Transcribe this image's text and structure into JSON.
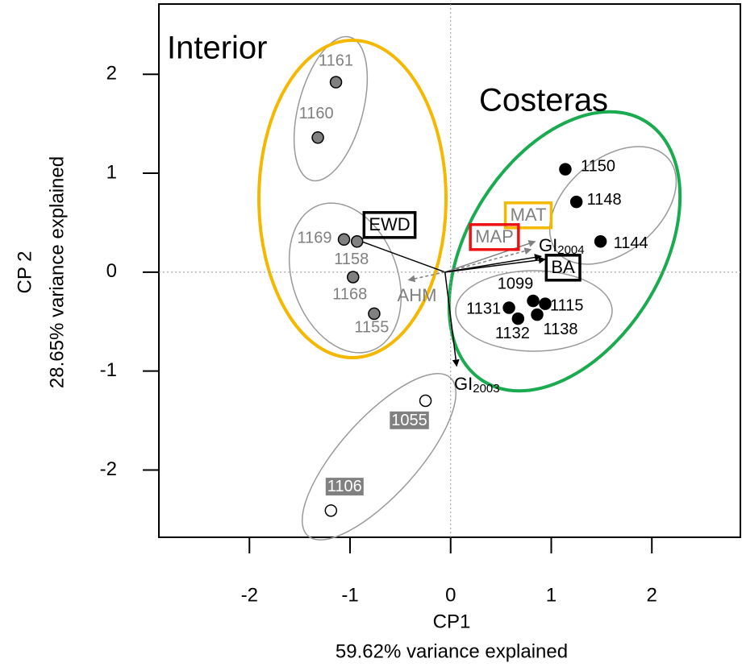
{
  "chart_data": {
    "type": "scatter",
    "x_label": "CP1",
    "x_sublabel": "59.62% variance explained",
    "y_label": "CP 2",
    "y_sublabel": "28.65% variance explained",
    "xlim": [
      -2.9,
      2.88
    ],
    "ylim": [
      -2.68,
      2.71
    ],
    "xticks": [
      -2,
      -1,
      0,
      1,
      2
    ],
    "yticks": [
      -2,
      -1,
      0,
      1,
      2
    ],
    "zero_lines": true,
    "annotations": [
      {
        "text": "Interior",
        "color": "#f5b800"
      },
      {
        "text": "Costeras",
        "color": "#1aaa4f"
      }
    ],
    "series": [
      {
        "color": "#808080",
        "label_color": "#808080",
        "labels": [
          "1161",
          "1160",
          "1169",
          "1158",
          "1168",
          "1155"
        ],
        "x": [
          -1.14,
          -1.32,
          -1.06,
          -0.93,
          -0.97,
          -0.76
        ],
        "values": [
          1.92,
          1.36,
          0.33,
          0.31,
          -0.05,
          -0.42
        ]
      },
      {
        "color": "#000000",
        "label_color": "#000000",
        "labels": [
          "1150",
          "1148",
          "1144",
          "1099",
          "1115",
          "1131",
          "1138",
          "1132"
        ],
        "x": [
          1.14,
          1.25,
          1.49,
          0.82,
          0.94,
          0.58,
          0.86,
          0.67
        ],
        "values": [
          1.04,
          0.71,
          0.31,
          -0.29,
          -0.32,
          -0.36,
          -0.43,
          -0.47
        ]
      },
      {
        "color": "#ffffff",
        "label_color": "#ffffff",
        "label_background": "#808080",
        "labels": [
          "1055",
          "1106"
        ],
        "x": [
          -0.25,
          -1.19
        ],
        "values": [
          -1.3,
          -2.41
        ]
      }
    ],
    "vectors": [
      {
        "label": "EWD",
        "x": -0.94,
        "y": 0.33,
        "color": "#000000",
        "dashed": false,
        "box": "#000000"
      },
      {
        "label": "MAT",
        "x": 0.84,
        "y": 0.31,
        "color": "#808080",
        "dashed": false,
        "box": "#f5b800"
      },
      {
        "label": "MAP",
        "x": 0.8,
        "y": 0.23,
        "color": "#808080",
        "dashed": true,
        "box": "#ee1111"
      },
      {
        "label": "GI",
        "sub": "2004",
        "x": 0.9,
        "y": 0.16,
        "color": "#000000",
        "dashed": false
      },
      {
        "label": "BA",
        "x": 0.94,
        "y": 0.13,
        "color": "#000000",
        "dashed": false,
        "box": "#000000"
      },
      {
        "label": "AHM",
        "x": -0.42,
        "y": -0.08,
        "color": "#808080",
        "dashed": true
      },
      {
        "label": "GI",
        "sub": "2003",
        "x": 0.06,
        "y": -0.95,
        "color": "#000000",
        "dashed": false
      }
    ]
  }
}
